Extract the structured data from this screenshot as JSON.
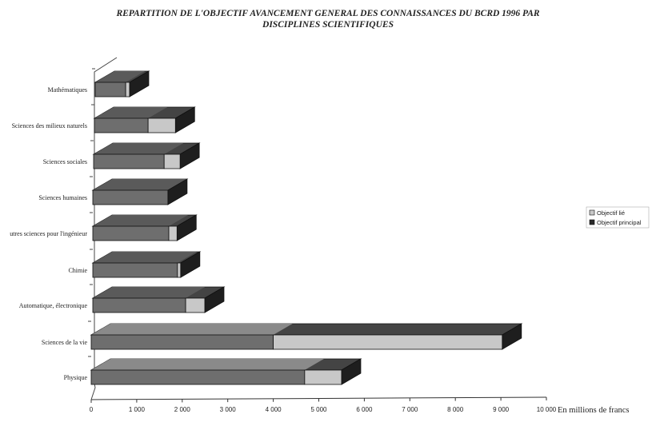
{
  "chart_data": {
    "type": "bar",
    "orientation": "horizontal",
    "stacked": true,
    "title_line1": "REPARTITION DE L'OBJECTIF AVANCEMENT GENERAL DES CONNAISSANCES DU BCRD 1996 PAR",
    "title_line2": "DISCIPLINES SCIENTIFIQUES",
    "xlabel": "En millions de francs",
    "xlim": [
      0,
      10000
    ],
    "xticks": [
      "0",
      "1 000",
      "2 000",
      "3 000",
      "4 000",
      "5 000",
      "6 000",
      "7 000",
      "8 000",
      "9 000",
      "10 000"
    ],
    "categories": [
      "Mathématiques",
      "Sciences des milieux naturels",
      "Sciences sociales",
      "Sciences humaines",
      "utres sciences pour l'ingénieur",
      "Chimie",
      "Automatique, électronique",
      "Sciences de la vie",
      "Physique"
    ],
    "series": [
      {
        "name": "Objectif principal",
        "color": "#6e6e6e",
        "values": [
          670,
          1180,
          1550,
          1650,
          1670,
          1860,
          2040,
          4000,
          4690
        ]
      },
      {
        "name": "Objectif lié",
        "color": "#c8c8c8",
        "values": [
          85,
          600,
          350,
          0,
          180,
          70,
          420,
          5030,
          810
        ]
      }
    ],
    "legend_position": "right",
    "legend": [
      "Objectif lié",
      "Objectif principal"
    ]
  }
}
